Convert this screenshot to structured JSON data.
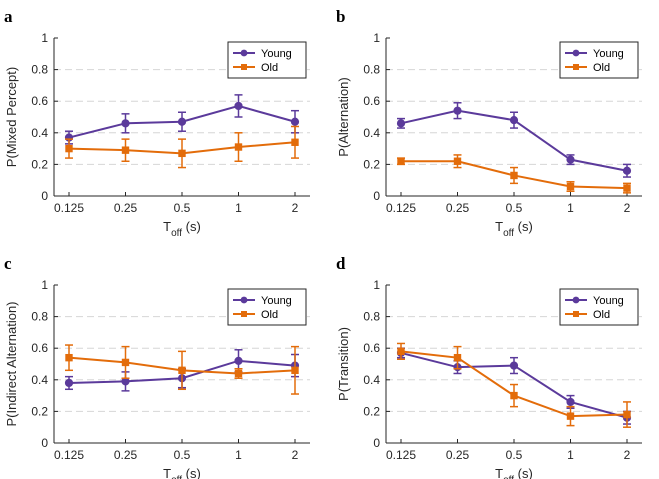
{
  "colors": {
    "young": "#5b3a9b",
    "old": "#e36c0a",
    "grid": "#d6d6d6",
    "axis": "#262626"
  },
  "chart_data": [
    {
      "panel": "a",
      "type": "line",
      "categories": [
        "0.125",
        "0.25",
        "0.5",
        "1",
        "2"
      ],
      "xlabel": {
        "main": "T",
        "sub": "off",
        "unit": " (s)"
      },
      "ylabel": "P(Mixed Percept)",
      "ylim": [
        0,
        1
      ],
      "yticks": [
        "0",
        "0.2",
        "0.4",
        "0.6",
        "0.8",
        "1"
      ],
      "grid": "horizontal dashed",
      "legend_position": "top-right",
      "series": [
        {
          "name": "Young",
          "color": "#5b3a9b",
          "marker": "circle",
          "values": [
            0.37,
            0.46,
            0.47,
            0.57,
            0.47
          ],
          "errors": [
            0.04,
            0.06,
            0.06,
            0.07,
            0.07
          ]
        },
        {
          "name": "Old",
          "color": "#e36c0a",
          "marker": "square",
          "values": [
            0.3,
            0.29,
            0.27,
            0.31,
            0.34
          ],
          "errors": [
            0.06,
            0.07,
            0.09,
            0.09,
            0.1
          ]
        }
      ]
    },
    {
      "panel": "b",
      "type": "line",
      "categories": [
        "0.125",
        "0.25",
        "0.5",
        "1",
        "2"
      ],
      "xlabel": {
        "main": "T",
        "sub": "off",
        "unit": " (s)"
      },
      "ylabel": "P(Alternation)",
      "ylim": [
        0,
        1
      ],
      "yticks": [
        "0",
        "0.2",
        "0.4",
        "0.6",
        "0.8",
        "1"
      ],
      "grid": "horizontal dashed",
      "legend_position": "top-right",
      "series": [
        {
          "name": "Young",
          "color": "#5b3a9b",
          "marker": "circle",
          "values": [
            0.46,
            0.54,
            0.48,
            0.23,
            0.16
          ],
          "errors": [
            0.03,
            0.05,
            0.05,
            0.03,
            0.04
          ]
        },
        {
          "name": "Old",
          "color": "#e36c0a",
          "marker": "square",
          "values": [
            0.22,
            0.22,
            0.13,
            0.06,
            0.05
          ],
          "errors": [
            0.02,
            0.04,
            0.05,
            0.03,
            0.03
          ]
        }
      ]
    },
    {
      "panel": "c",
      "type": "line",
      "categories": [
        "0.125",
        "0.25",
        "0.5",
        "1",
        "2"
      ],
      "xlabel": {
        "main": "T",
        "sub": "off",
        "unit": " (s)"
      },
      "ylabel": "P(Indirect Alternation)",
      "ylim": [
        0,
        1
      ],
      "yticks": [
        "0",
        "0.2",
        "0.4",
        "0.6",
        "0.8",
        "1"
      ],
      "grid": "horizontal dashed",
      "legend_position": "top-right",
      "series": [
        {
          "name": "Young",
          "color": "#5b3a9b",
          "marker": "circle",
          "values": [
            0.38,
            0.39,
            0.41,
            0.52,
            0.49
          ],
          "errors": [
            0.04,
            0.06,
            0.06,
            0.07,
            0.07
          ]
        },
        {
          "name": "Old",
          "color": "#e36c0a",
          "marker": "square",
          "values": [
            0.54,
            0.51,
            0.46,
            0.44,
            0.46
          ],
          "errors": [
            0.08,
            0.1,
            0.12,
            0.03,
            0.15
          ]
        }
      ]
    },
    {
      "panel": "d",
      "type": "line",
      "categories": [
        "0.125",
        "0.25",
        "0.5",
        "1",
        "2"
      ],
      "xlabel": {
        "main": "T",
        "sub": "off",
        "unit": " (s)"
      },
      "ylabel": "P(Transition)",
      "ylim": [
        0,
        1
      ],
      "yticks": [
        "0",
        "0.2",
        "0.4",
        "0.6",
        "0.8",
        "1"
      ],
      "grid": "horizontal dashed",
      "legend_position": "top-right",
      "series": [
        {
          "name": "Young",
          "color": "#5b3a9b",
          "marker": "circle",
          "values": [
            0.57,
            0.48,
            0.49,
            0.26,
            0.16
          ],
          "errors": [
            0.03,
            0.04,
            0.05,
            0.04,
            0.04
          ]
        },
        {
          "name": "Old",
          "color": "#e36c0a",
          "marker": "square",
          "values": [
            0.58,
            0.54,
            0.3,
            0.17,
            0.18
          ],
          "errors": [
            0.05,
            0.07,
            0.07,
            0.06,
            0.08
          ]
        }
      ]
    }
  ]
}
